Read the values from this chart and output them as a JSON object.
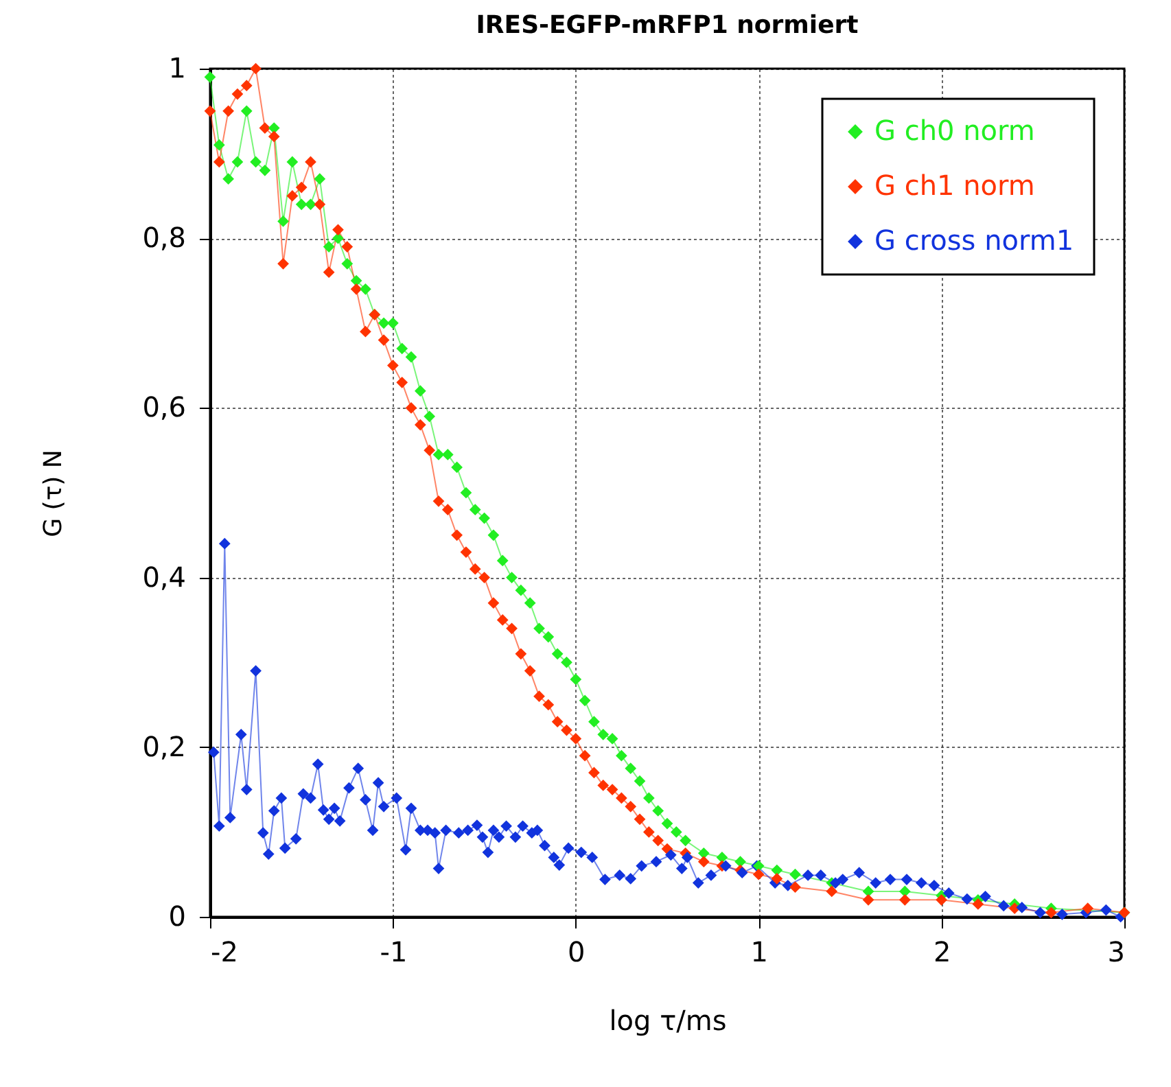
{
  "chart_data": {
    "type": "line",
    "title": "IRES-EGFP-mRFP1 normiert",
    "xlabel": "log τ/ms",
    "ylabel": "G (τ) N",
    "xlim": [
      -2,
      3
    ],
    "xticks": [
      -2,
      -1,
      0,
      1,
      2,
      3
    ],
    "ylim": [
      0,
      1
    ],
    "yticks": [
      0,
      {
        "value": 0.2,
        "label": "0,2"
      },
      {
        "value": 0.4,
        "label": "0,4"
      },
      {
        "value": 0.6,
        "label": "0,6"
      },
      {
        "value": 0.8,
        "label": "0,8"
      },
      1
    ],
    "grid": true,
    "legend": "top right",
    "marker": "diamond",
    "line_style": "solid",
    "series": [
      {
        "name": "G ch0 norm",
        "color": "#22ee22",
        "x": [
          -2,
          -1.95,
          -1.9,
          -1.85,
          -1.8,
          -1.75,
          -1.7,
          -1.65,
          -1.6,
          -1.55,
          -1.5,
          -1.45,
          -1.4,
          -1.35,
          -1.3,
          -1.25,
          -1.2,
          -1.15,
          -1.1,
          -1.05,
          -1,
          -0.95,
          -0.9,
          -0.85,
          -0.8,
          -0.75,
          -0.7,
          -0.65,
          -0.6,
          -0.55,
          -0.5,
          -0.45,
          -0.4,
          -0.35,
          -0.3,
          -0.25,
          -0.2,
          -0.15,
          -0.1,
          -0.05,
          0,
          0.05,
          0.1,
          0.15,
          0.2,
          0.25,
          0.3,
          0.35,
          0.4,
          0.45,
          0.5,
          0.55,
          0.6,
          0.7,
          0.8,
          0.9,
          1,
          1.1,
          1.2,
          1.4,
          1.6,
          1.8,
          2,
          2.2,
          2.4,
          2.6,
          3
        ],
        "values": [
          0.99,
          0.91,
          0.87,
          0.89,
          0.95,
          0.89,
          0.88,
          0.93,
          0.82,
          0.89,
          0.84,
          0.84,
          0.87,
          0.79,
          0.8,
          0.77,
          0.75,
          0.74,
          0.71,
          0.7,
          0.7,
          0.67,
          0.66,
          0.62,
          0.59,
          0.545,
          0.545,
          0.53,
          0.5,
          0.48,
          0.47,
          0.45,
          0.42,
          0.4,
          0.385,
          0.37,
          0.34,
          0.33,
          0.31,
          0.3,
          0.28,
          0.255,
          0.23,
          0.215,
          0.21,
          0.19,
          0.175,
          0.16,
          0.14,
          0.125,
          0.11,
          0.1,
          0.09,
          0.075,
          0.07,
          0.065,
          0.06,
          0.055,
          0.05,
          0.04,
          0.03,
          0.03,
          0.025,
          0.02,
          0.015,
          0.01,
          0.005
        ]
      },
      {
        "name": "G ch1 norm",
        "color": "#ff3300",
        "x": [
          -2,
          -1.95,
          -1.9,
          -1.85,
          -1.8,
          -1.75,
          -1.7,
          -1.65,
          -1.6,
          -1.55,
          -1.5,
          -1.45,
          -1.4,
          -1.35,
          -1.3,
          -1.25,
          -1.2,
          -1.15,
          -1.1,
          -1.05,
          -1,
          -0.95,
          -0.9,
          -0.85,
          -0.8,
          -0.75,
          -0.7,
          -0.65,
          -0.6,
          -0.55,
          -0.5,
          -0.45,
          -0.4,
          -0.35,
          -0.3,
          -0.25,
          -0.2,
          -0.15,
          -0.1,
          -0.05,
          0,
          0.05,
          0.1,
          0.15,
          0.2,
          0.25,
          0.3,
          0.35,
          0.4,
          0.45,
          0.5,
          0.6,
          0.7,
          0.8,
          0.9,
          1,
          1.1,
          1.2,
          1.4,
          1.6,
          1.8,
          2,
          2.2,
          2.4,
          2.6,
          2.8,
          3
        ],
        "values": [
          0.95,
          0.89,
          0.95,
          0.97,
          0.98,
          1,
          0.93,
          0.92,
          0.77,
          0.85,
          0.86,
          0.89,
          0.84,
          0.76,
          0.81,
          0.79,
          0.74,
          0.69,
          0.71,
          0.68,
          0.65,
          0.63,
          0.6,
          0.58,
          0.55,
          0.49,
          0.48,
          0.45,
          0.43,
          0.41,
          0.4,
          0.37,
          0.35,
          0.34,
          0.31,
          0.29,
          0.26,
          0.25,
          0.23,
          0.22,
          0.21,
          0.19,
          0.17,
          0.155,
          0.15,
          0.14,
          0.13,
          0.115,
          0.1,
          0.09,
          0.08,
          0.075,
          0.065,
          0.06,
          0.055,
          0.05,
          0.045,
          0.035,
          0.03,
          0.02,
          0.02,
          0.02,
          0.015,
          0.01,
          0.005,
          0.01,
          0.005
        ]
      },
      {
        "name": "G cross norm1",
        "color": "#1133dd",
        "x": [
          -1.98,
          -1.95,
          -1.92,
          -1.89,
          -1.83,
          -1.8,
          -1.75,
          -1.71,
          -1.68,
          -1.65,
          -1.61,
          -1.59,
          -1.53,
          -1.49,
          -1.45,
          -1.41,
          -1.38,
          -1.35,
          -1.32,
          -1.29,
          -1.24,
          -1.19,
          -1.15,
          -1.11,
          -1.08,
          -1.05,
          -0.98,
          -0.93,
          -0.9,
          -0.85,
          -0.81,
          -0.77,
          -0.75,
          -0.71,
          -0.64,
          -0.59,
          -0.54,
          -0.51,
          -0.48,
          -0.45,
          -0.42,
          -0.38,
          -0.33,
          -0.29,
          -0.24,
          -0.21,
          -0.17,
          -0.12,
          -0.09,
          -0.04,
          0.03,
          0.09,
          0.16,
          0.24,
          0.3,
          0.36,
          0.44,
          0.52,
          0.58,
          0.61,
          0.67,
          0.74,
          0.82,
          0.91,
          0.99,
          1.09,
          1.16,
          1.27,
          1.34,
          1.42,
          1.46,
          1.55,
          1.64,
          1.72,
          1.81,
          1.89,
          1.96,
          2.04,
          2.14,
          2.24,
          2.34,
          2.44,
          2.54,
          2.66,
          2.79,
          2.9,
          2.98
        ],
        "values": [
          0.194,
          0.107,
          0.44,
          0.117,
          0.215,
          0.15,
          0.29,
          0.099,
          0.074,
          0.125,
          0.14,
          0.081,
          0.092,
          0.145,
          0.14,
          0.18,
          0.126,
          0.115,
          0.128,
          0.113,
          0.152,
          0.175,
          0.138,
          0.102,
          0.158,
          0.13,
          0.14,
          0.079,
          0.128,
          0.102,
          0.102,
          0.099,
          0.057,
          0.102,
          0.099,
          0.102,
          0.108,
          0.094,
          0.076,
          0.102,
          0.094,
          0.107,
          0.094,
          0.107,
          0.099,
          0.102,
          0.084,
          0.07,
          0.061,
          0.081,
          0.076,
          0.07,
          0.044,
          0.049,
          0.045,
          0.06,
          0.065,
          0.073,
          0.057,
          0.07,
          0.04,
          0.049,
          0.06,
          0.052,
          0.06,
          0.04,
          0.037,
          0.049,
          0.049,
          0.04,
          0.044,
          0.052,
          0.04,
          0.044,
          0.044,
          0.04,
          0.037,
          0.028,
          0.021,
          0.024,
          0.013,
          0.011,
          0.005,
          0.003,
          0.005,
          0.008,
          0
        ]
      }
    ]
  }
}
